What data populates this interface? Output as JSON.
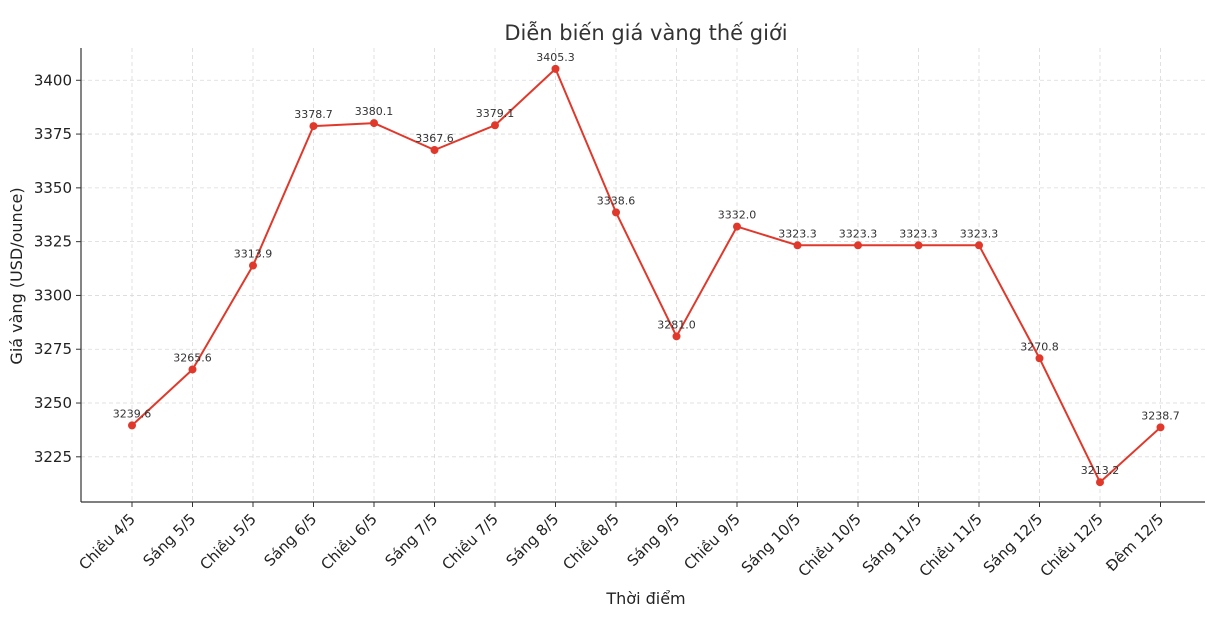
{
  "chart_data": {
    "type": "line",
    "title": "Diễn biến giá vàng thế giới",
    "xlabel": "Thời điểm",
    "ylabel": "Giá vàng (USD/ounce)",
    "categories": [
      "Chiều 4/5",
      "Sáng 5/5",
      "Chiều 5/5",
      "Sáng 6/5",
      "Chiều 6/5",
      "Sáng 7/5",
      "Chiều 7/5",
      "Sáng 8/5",
      "Chiều 8/5",
      "Sáng 9/5",
      "Chiều 9/5",
      "Sáng 10/5",
      "Chiều 10/5",
      "Sáng 11/5",
      "Chiều 11/5",
      "Sáng 12/5",
      "Chiều 12/5",
      "Đêm 12/5"
    ],
    "values": [
      3239.6,
      3265.6,
      3313.9,
      3378.7,
      3380.1,
      3367.6,
      3379.1,
      3405.3,
      3338.6,
      3281.0,
      3332.0,
      3323.3,
      3323.3,
      3323.3,
      3323.3,
      3270.8,
      3213.2,
      3238.7
    ],
    "value_labels": [
      "3239.6",
      "3265.6",
      "3313.9",
      "3378.7",
      "3380.1",
      "3367.6",
      "3379.1",
      "3405.3",
      "3338.6",
      "3281.0",
      "3332.0",
      "3323.3",
      "3323.3",
      "3323.3",
      "3323.3",
      "3270.8",
      "3213.2",
      "3238.7"
    ],
    "ylim": [
      3204,
      3415
    ],
    "yticks": [
      3225,
      3250,
      3275,
      3300,
      3325,
      3350,
      3375,
      3400
    ],
    "grid": true,
    "line_color": "#e0392b"
  }
}
